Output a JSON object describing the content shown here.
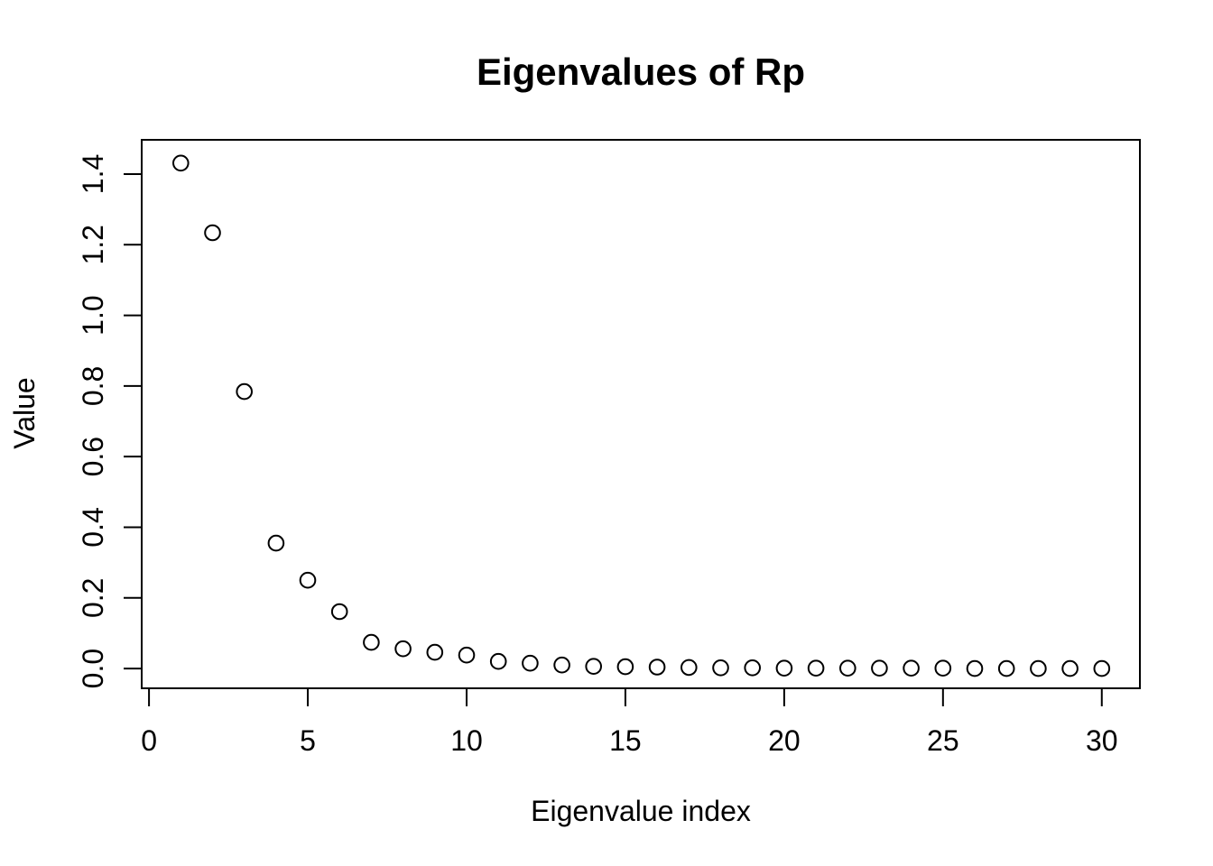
{
  "chart_data": {
    "type": "scatter",
    "title": "Eigenvalues of Rp",
    "xlabel": "Eigenvalue index",
    "ylabel": "Value",
    "x": [
      1,
      2,
      3,
      4,
      5,
      6,
      7,
      8,
      9,
      10,
      11,
      12,
      13,
      14,
      15,
      16,
      17,
      18,
      19,
      20,
      21,
      22,
      23,
      24,
      25,
      26,
      27,
      28,
      29,
      30
    ],
    "y": [
      1.431,
      1.234,
      0.784,
      0.355,
      0.25,
      0.161,
      0.074,
      0.056,
      0.046,
      0.038,
      0.02,
      0.015,
      0.01,
      0.006,
      0.005,
      0.004,
      0.003,
      0.002,
      0.002,
      0.001,
      0.001,
      0.001,
      0.001,
      0.001,
      0.001,
      0.0,
      0.0,
      0.0,
      0.0,
      0.0
    ],
    "xlim": [
      -0.23,
      31.2
    ],
    "ylim": [
      -0.056,
      1.497
    ],
    "x_ticks": [
      0,
      5,
      10,
      15,
      20,
      25,
      30
    ],
    "x_tick_labels": [
      "0",
      "5",
      "10",
      "15",
      "20",
      "25",
      "30"
    ],
    "y_ticks": [
      0.0,
      0.2,
      0.4,
      0.6,
      0.8,
      1.0,
      1.2,
      1.4
    ],
    "y_tick_labels": [
      "0.0",
      "0.2",
      "0.4",
      "0.6",
      "0.8",
      "1.0",
      "1.2",
      "1.4"
    ],
    "grid": false,
    "legend": null,
    "point_style": "open-circle",
    "colors": {
      "points": "#000000",
      "axis": "#000000",
      "text": "#000000",
      "background": "#ffffff"
    }
  }
}
